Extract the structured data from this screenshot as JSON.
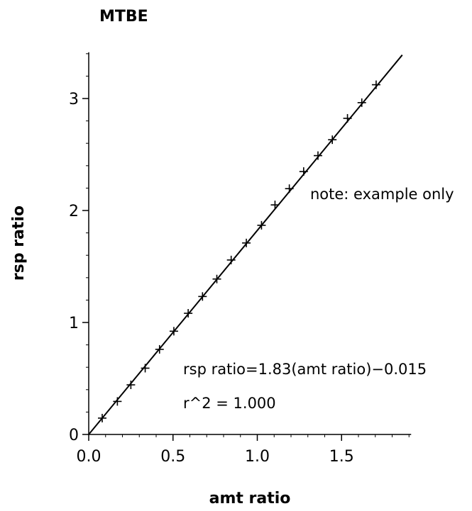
{
  "chart_data": {
    "type": "scatter",
    "title": "MTBE",
    "xlabel": "amt ratio",
    "ylabel": "rsp ratio",
    "xlim": [
      0,
      1.9
    ],
    "ylim": [
      0,
      3.4
    ],
    "x_ticks": [
      0.0,
      0.5,
      1.0,
      1.5
    ],
    "x_tick_labels": [
      "0.0",
      "0.5",
      "1.0",
      "1.5"
    ],
    "y_ticks": [
      0,
      1,
      2,
      3
    ],
    "y_tick_labels": [
      "0",
      "1",
      "2",
      "3"
    ],
    "grid": false,
    "marker": "+",
    "points": [
      {
        "x": 0.08,
        "y": 0.146
      },
      {
        "x": 0.17,
        "y": 0.295
      },
      {
        "x": 0.25,
        "y": 0.443
      },
      {
        "x": 0.335,
        "y": 0.592
      },
      {
        "x": 0.42,
        "y": 0.76
      },
      {
        "x": 0.505,
        "y": 0.922
      },
      {
        "x": 0.59,
        "y": 1.082
      },
      {
        "x": 0.675,
        "y": 1.232
      },
      {
        "x": 0.76,
        "y": 1.388
      },
      {
        "x": 0.845,
        "y": 1.558
      },
      {
        "x": 0.935,
        "y": 1.71
      },
      {
        "x": 1.025,
        "y": 1.868
      },
      {
        "x": 1.105,
        "y": 2.05
      },
      {
        "x": 1.19,
        "y": 2.195
      },
      {
        "x": 1.275,
        "y": 2.348
      },
      {
        "x": 1.36,
        "y": 2.49
      },
      {
        "x": 1.445,
        "y": 2.632
      },
      {
        "x": 1.535,
        "y": 2.823
      },
      {
        "x": 1.62,
        "y": 2.963
      },
      {
        "x": 1.705,
        "y": 3.123
      }
    ],
    "fit_line": {
      "slope": 1.83,
      "intercept": -0.015,
      "x_range": [
        0,
        1.86
      ]
    },
    "annotations": {
      "note": "note: example only",
      "equation": "rsp ratio=1.83(amt ratio)−0.015",
      "r_squared": "r^2 = 1.000"
    }
  }
}
